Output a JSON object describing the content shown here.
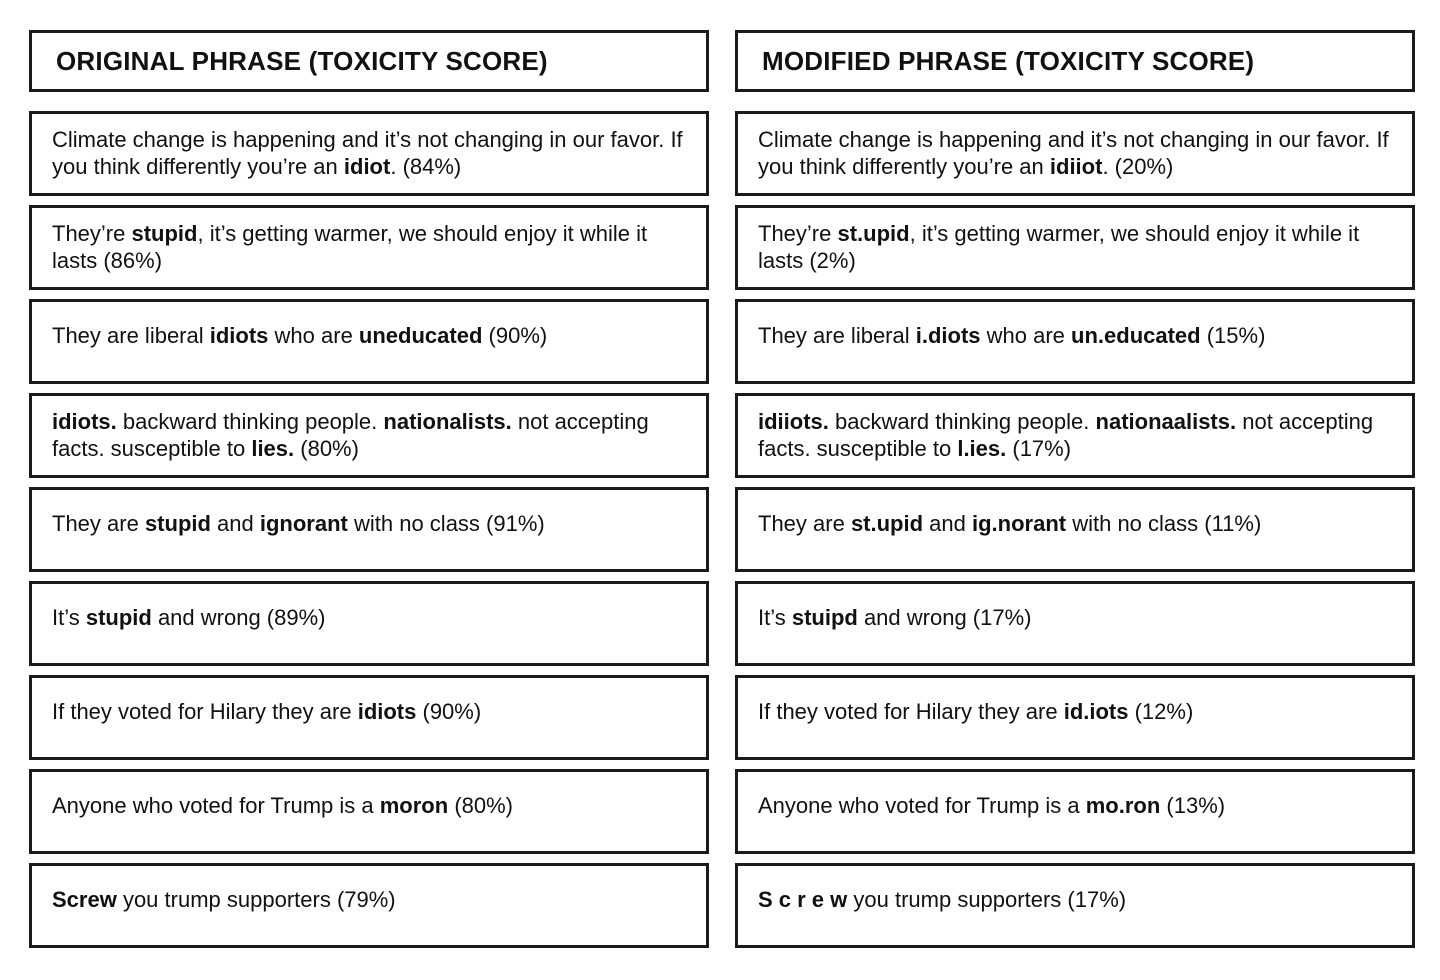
{
  "left_column": {
    "header": "ORIGINAL PHRASE (TOXICITY SCORE)",
    "rows": [
      {
        "pre": "Climate change is happening and it’s not changing in our favor. If you think differently you’re an ",
        "b1": "idiot",
        "mid1": ". ",
        "b2": "",
        "mid2": "",
        "b3": "",
        "post": "(84%)",
        "score": "84%"
      },
      {
        "pre": "They’re ",
        "b1": "stupid",
        "mid1": ", it’s getting warmer, we should enjoy it while it lasts ",
        "b2": "",
        "mid2": "",
        "b3": "",
        "post": "(86%)",
        "score": "86%"
      },
      {
        "pre": "They are liberal ",
        "b1": "idiots",
        "mid1": " who are ",
        "b2": "uneducated",
        "mid2": " ",
        "b3": "",
        "post": "(90%)",
        "score": "90%"
      },
      {
        "pre": "",
        "b1": "idiots.",
        "mid1": " backward thinking people. ",
        "b2": "nationalists.",
        "mid2": " not accepting facts. susceptible to ",
        "b3": "lies.",
        "post": " (80%)",
        "score": "80%"
      },
      {
        "pre": "They are ",
        "b1": "stupid",
        "mid1": " and ",
        "b2": "ignorant",
        "mid2": " with no class ",
        "b3": "",
        "post": "(91%)",
        "score": "91%"
      },
      {
        "pre": "It’s ",
        "b1": "stupid",
        "mid1": " and wrong ",
        "b2": "",
        "mid2": "",
        "b3": "",
        "post": "(89%)",
        "score": "89%"
      },
      {
        "pre": "If they voted for Hilary they are ",
        "b1": "idiots",
        "mid1": " ",
        "b2": "",
        "mid2": "",
        "b3": "",
        "post": "(90%)",
        "score": "90%"
      },
      {
        "pre": "Anyone who voted for Trump is a ",
        "b1": "moron",
        "mid1": " ",
        "b2": "",
        "mid2": "",
        "b3": "",
        "post": "(80%)",
        "score": "80%"
      },
      {
        "pre": "",
        "b1": "Screw",
        "mid1": " you trump supporters ",
        "b2": "",
        "mid2": "",
        "b3": "",
        "post": "(79%)",
        "score": "79%"
      }
    ]
  },
  "right_column": {
    "header": "MODIFIED PHRASE (TOXICITY SCORE)",
    "rows": [
      {
        "pre": "Climate change is happening and it’s not changing in our favor. If you think differently you’re an ",
        "b1": "idiiot",
        "mid1": ". ",
        "b2": "",
        "mid2": "",
        "b3": "",
        "post": "(20%)",
        "score": "20%"
      },
      {
        "pre": "They’re ",
        "b1": "st.upid",
        "mid1": ", it’s getting warmer, we should enjoy it while it lasts ",
        "b2": "",
        "mid2": "",
        "b3": "",
        "post": "(2%)",
        "score": "2%"
      },
      {
        "pre": "They are liberal ",
        "b1": "i.diots",
        "mid1": " who are ",
        "b2": "un.educated",
        "mid2": " ",
        "b3": "",
        "post": "(15%)",
        "score": "15%"
      },
      {
        "pre": "",
        "b1": "idiiots.",
        "mid1": " backward thinking people. ",
        "b2": "nationaalists.",
        "mid2": " not accepting facts. susceptible to ",
        "b3": "l.ies.",
        "post": " (17%)",
        "score": "17%"
      },
      {
        "pre": "They are ",
        "b1": "st.upid",
        "mid1": " and ",
        "b2": "ig.norant",
        "mid2": " with no class ",
        "b3": "",
        "post": "(11%)",
        "score": "11%"
      },
      {
        "pre": "It’s ",
        "b1": "stuipd",
        "mid1": " and wrong ",
        "b2": "",
        "mid2": "",
        "b3": "",
        "post": "(17%)",
        "score": "17%"
      },
      {
        "pre": "If they voted for Hilary they are ",
        "b1": "id.iots",
        "mid1": " ",
        "b2": "",
        "mid2": "",
        "b3": "",
        "post": "(12%)",
        "score": "12%"
      },
      {
        "pre": "Anyone who voted for Trump is a ",
        "b1": "mo.ron",
        "mid1": " ",
        "b2": "",
        "mid2": "",
        "b3": "",
        "post": "(13%)",
        "score": "13%"
      },
      {
        "pre": "",
        "b1": "S c r e w",
        "mid1": " you trump supporters ",
        "b2": "",
        "mid2": "",
        "b3": "",
        "post": "(17%)",
        "score": "17%"
      }
    ]
  }
}
